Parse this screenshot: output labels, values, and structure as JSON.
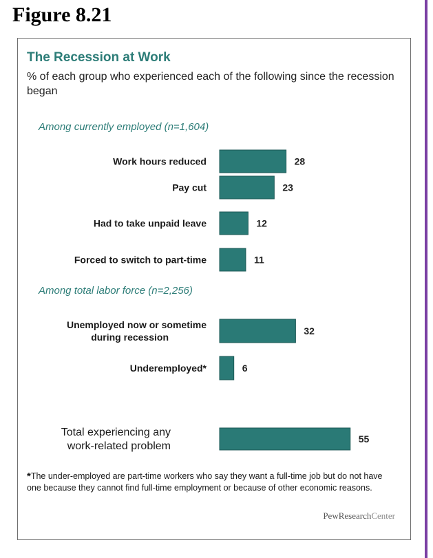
{
  "figure": {
    "label": "Figure 8.21"
  },
  "footnote": "*The under-employed are part-time workers who say they want a full-time job but do not have one because they cannot find full-time employment or because of other economic reasons.",
  "brand": {
    "part1": "PewResearch",
    "part2": "Center"
  },
  "colors": {
    "bar": "#2a7a76",
    "bar_edge": "#1d5a57",
    "accent_text": "#2d7d78",
    "frame": "#6f6f6f",
    "page_rule": "#7a3fa3"
  },
  "chart_data": {
    "type": "bar",
    "orientation": "horizontal",
    "title": "The Recession at Work",
    "subtitle": "% of each group who experienced each of the following since the recession began",
    "sections": [
      {
        "label": "Among currently employed (n=1,604)",
        "categories": [
          "Work hours reduced",
          "Pay cut",
          "Had to take unpaid leave",
          "Forced to switch to part-time"
        ]
      },
      {
        "label": "Among total labor force (n=2,256)",
        "categories": [
          "Unemployed now or sometime during recession",
          "Underemployed*"
        ]
      },
      {
        "label": "",
        "categories": [
          "Total experiencing any work-related problem"
        ]
      }
    ],
    "categories": [
      "Work hours reduced",
      "Pay cut",
      "Had to take unpaid leave",
      "Forced to switch to part-time",
      "Unemployed now or sometime during recession",
      "Underemployed*",
      "Total experiencing any work-related problem"
    ],
    "values": [
      28,
      23,
      12,
      11,
      32,
      6,
      55
    ],
    "data_labels": true,
    "grid": false,
    "legend": "none"
  }
}
